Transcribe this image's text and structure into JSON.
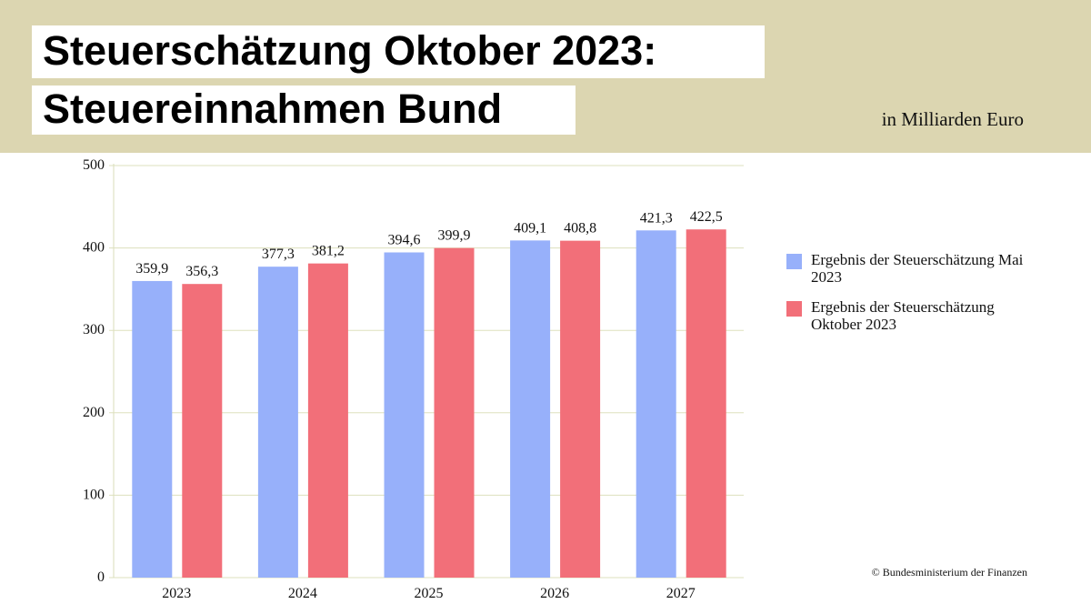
{
  "chart_data": {
    "type": "bar",
    "title": [
      "Steuerschätzung Oktober 2023:",
      "Steuereinnahmen Bund"
    ],
    "subtitle": "in Milliarden Euro",
    "source": "© Bundesministerium der Finanzen",
    "categories": [
      "2023",
      "2024",
      "2025",
      "2026",
      "2027"
    ],
    "series": [
      {
        "name": "Ergebnis der Steuerschätzung Mai 2023",
        "color": "#97b0fa",
        "values": [
          359.9,
          377.3,
          394.6,
          409.1,
          421.3
        ],
        "value_labels": [
          "359,9",
          "377,3",
          "394,6",
          "409,1",
          "421,3"
        ]
      },
      {
        "name": "Ergebnis der Steuerschätzung Oktober 2023",
        "color": "#f26f79",
        "values": [
          356.3,
          381.2,
          399.9,
          408.8,
          422.5
        ],
        "value_labels": [
          "356,3",
          "381,2",
          "399,9",
          "408,8",
          "422,5"
        ]
      }
    ],
    "ylim": [
      0,
      500
    ],
    "yticks": [
      0,
      100,
      200,
      300,
      400,
      500
    ],
    "grid": true,
    "legend": "right"
  }
}
